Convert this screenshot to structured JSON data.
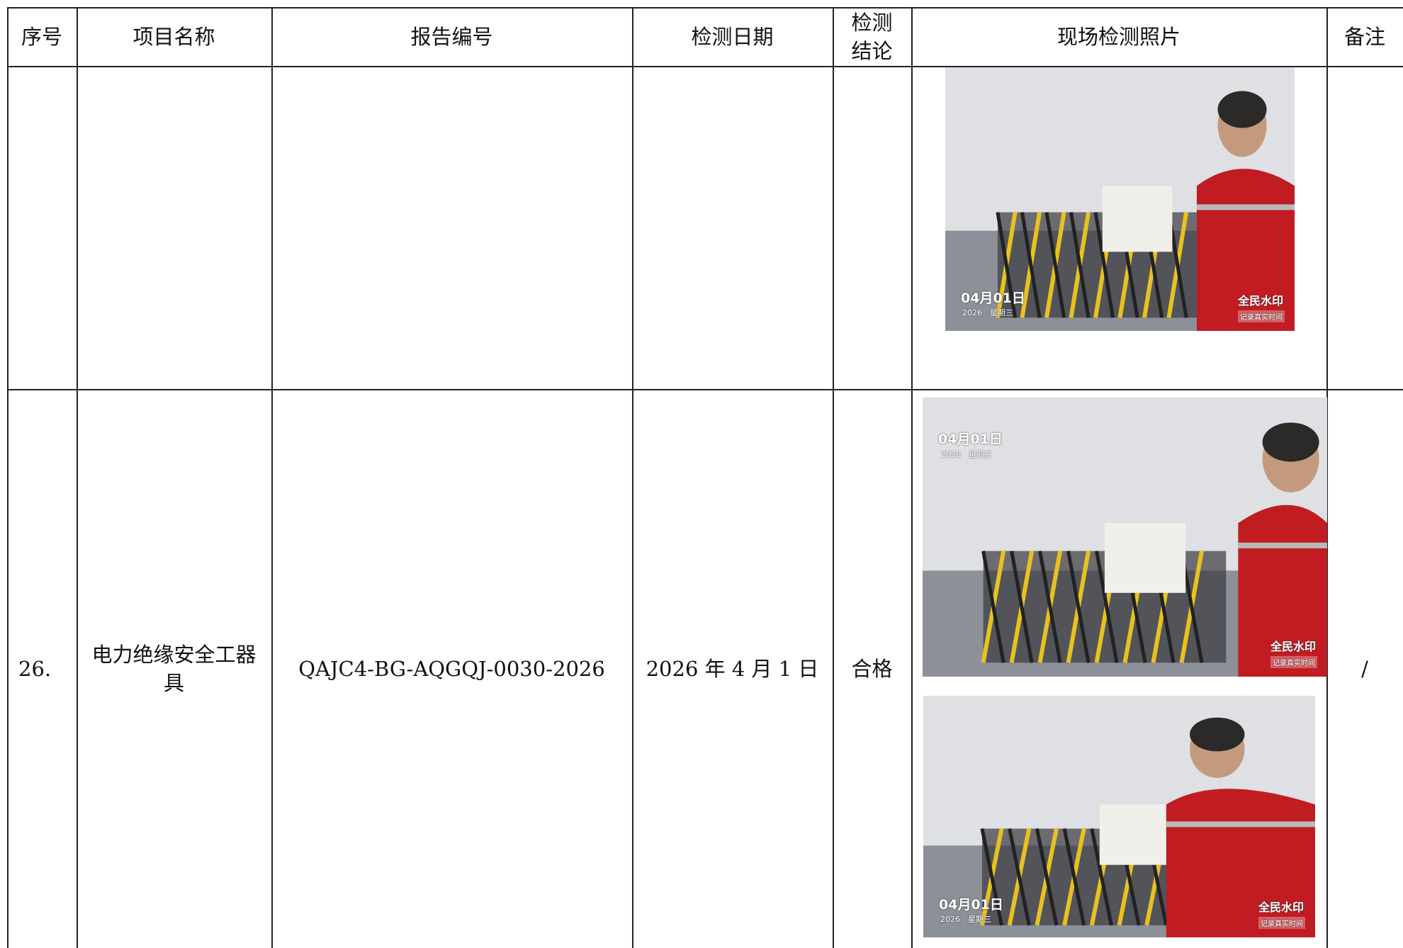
{
  "table": {
    "headers": [
      "序号",
      "项目名称",
      "报告编号",
      "检测日期",
      "检测结论",
      "现场检测照片",
      "备注"
    ],
    "rows": [
      {
        "photos": [
          {
            "date": "04月01日",
            "year_weekday": "2026　星期三",
            "brand": "全民水印",
            "tagline": "记录真实时间"
          }
        ]
      },
      {
        "index": "26.",
        "name": "电力绝缘安全工器具",
        "report": "QAJC4-BG-AQGQJ-0030-2026",
        "date": "2026 年 4 月 1 日",
        "result": "合格",
        "remark": "/",
        "photos": [
          {
            "date": "04月01日",
            "year_weekday": "2026　星期三",
            "brand": "全民水印",
            "tagline": "记录真实时间"
          },
          {
            "date": "04月01日",
            "year_weekday": "2026　星期三",
            "brand": "全民水印",
            "tagline": "记录真实时间"
          }
        ]
      }
    ]
  }
}
